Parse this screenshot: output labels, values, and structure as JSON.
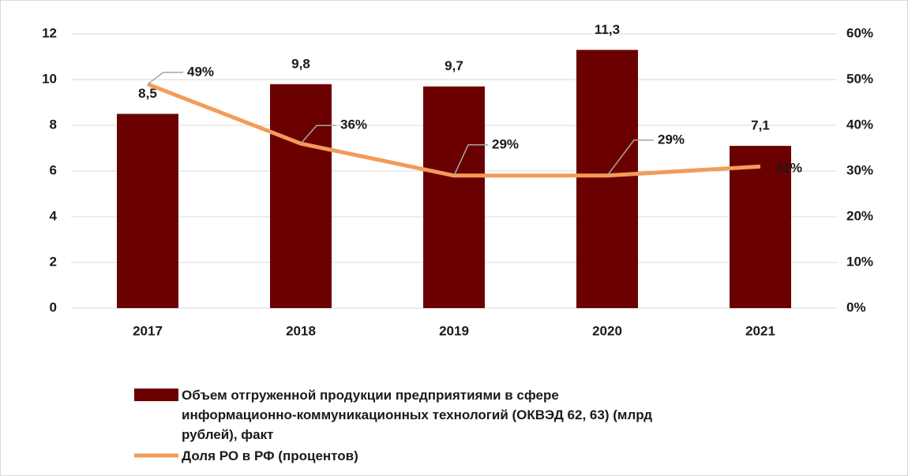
{
  "chart_data": {
    "type": "bar_line",
    "categories": [
      "2017",
      "2018",
      "2019",
      "2020",
      "2021"
    ],
    "series": [
      {
        "name": "Объем отгруженной продукции предприятиями в сфере информационно-коммуникационных технологий (ОКВЭД 62, 63) (млрд рублей), факт",
        "color": "#6b0000",
        "type": "bar",
        "values": [
          8.5,
          9.8,
          9.7,
          11.3,
          7.1
        ],
        "value_labels": [
          "8,5",
          "9,8",
          "9,7",
          "11,3",
          "7,1"
        ]
      },
      {
        "name": "Доля РО в РФ (процентов)",
        "color": "#f39b5a",
        "type": "line",
        "axis": "y2",
        "values": [
          49,
          36,
          29,
          29,
          31
        ],
        "value_labels": [
          "49%",
          "36%",
          "29%",
          "29%",
          "31%"
        ]
      }
    ],
    "ylim": [
      0,
      12
    ],
    "yticks": [
      0,
      2,
      4,
      6,
      8,
      10,
      12
    ],
    "y2lim": [
      0,
      60
    ],
    "y2ticks": [
      {
        "value": 0,
        "label": "0%"
      },
      {
        "value": 10,
        "label": "10%"
      },
      {
        "value": 20,
        "label": "20%"
      },
      {
        "value": 30,
        "label": "30%"
      },
      {
        "value": 40,
        "label": "40%"
      },
      {
        "value": 50,
        "label": "50%"
      },
      {
        "value": 60,
        "label": "60%"
      }
    ],
    "grid": true,
    "legend": "bottom"
  }
}
